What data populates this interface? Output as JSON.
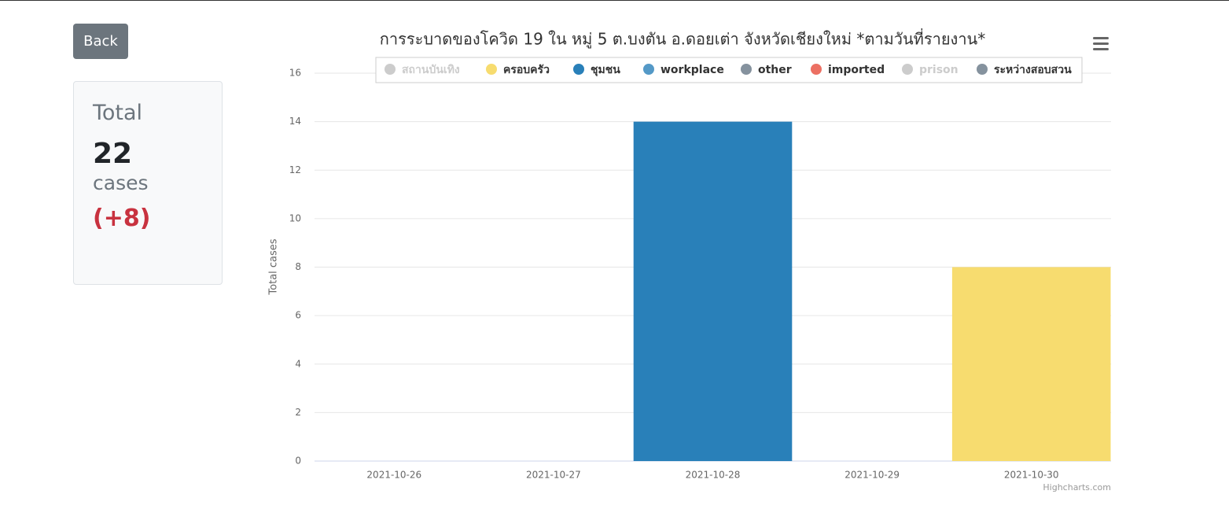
{
  "back_button": "Back",
  "summary": {
    "label": "Total",
    "count": "22",
    "unit": "cases",
    "change": "(+8)"
  },
  "chart_data": {
    "type": "bar",
    "stacked": true,
    "title": "การระบาดของโควิด 19 ใน หมู่ 5 ต.บงตัน อ.ดอยเต่า จังหวัดเชียงใหม่ *ตามวันที่รายงาน*",
    "y_label": "Total cases",
    "credit": "Highcharts.com",
    "categories": [
      "2021-10-26",
      "2021-10-27",
      "2021-10-28",
      "2021-10-29",
      "2021-10-30"
    ],
    "series": [
      {
        "name": "สถานบันเทิง",
        "visible": false
      },
      {
        "name": "ครอบครัว",
        "color": "#f7dc6f",
        "values": [
          0,
          0,
          0,
          0,
          8
        ]
      },
      {
        "name": "ชุมชน",
        "color": "#2980b9",
        "values": [
          0,
          0,
          14,
          0,
          0
        ]
      },
      {
        "name": "workplace",
        "color": "#5499c7",
        "values": [
          0,
          0,
          0,
          0,
          0
        ]
      },
      {
        "name": "other",
        "color": "#85929e",
        "values": [
          0,
          0,
          0,
          0,
          0
        ]
      },
      {
        "name": "imported",
        "color": "#ec7063",
        "values": [
          0,
          0,
          0,
          0,
          0
        ]
      },
      {
        "name": "prison",
        "visible": false
      },
      {
        "name": "ระหว่างสอบสวน",
        "color": "#85929e",
        "values": [
          0,
          0,
          0,
          0,
          0
        ]
      }
    ],
    "ylim": [
      0,
      16
    ],
    "yticks": [
      0,
      2,
      4,
      6,
      8,
      10,
      12,
      14,
      16
    ],
    "grid": true
  }
}
